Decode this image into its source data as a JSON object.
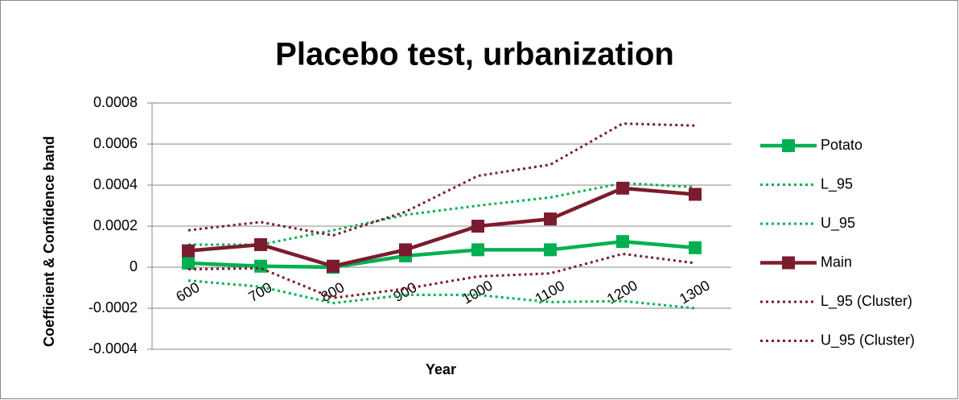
{
  "chart_data": {
    "type": "line",
    "title": "Placebo test, urbanization",
    "x_label": "Year",
    "y_label": "Coefficient & Confidence band",
    "categories": [
      "600",
      "700",
      "800",
      "900",
      "1000",
      "1100",
      "1200",
      "1300"
    ],
    "ylim": [
      -0.0004,
      0.0008
    ],
    "yticks": [
      -0.0004,
      -0.0002,
      0,
      0.0002,
      0.0004,
      0.0006,
      0.0008
    ],
    "grid": true,
    "legend": "right",
    "series": [
      {
        "name": "Potato",
        "color": "#00b050",
        "line_style": "solid",
        "marker": "square",
        "values": [
          2e-05,
          5e-06,
          0,
          5.5e-05,
          8.5e-05,
          8.5e-05,
          0.000125,
          9.5e-05
        ]
      },
      {
        "name": "L_95",
        "color": "#00b050",
        "line_style": "dotted",
        "marker": "none",
        "values": [
          -6.5e-05,
          -9.5e-05,
          -0.000175,
          -0.000135,
          -0.000135,
          -0.00017,
          -0.000165,
          -0.0002
        ]
      },
      {
        "name": "U_95",
        "color": "#00b050",
        "line_style": "dotted",
        "marker": "none",
        "values": [
          0.00011,
          0.00011,
          0.00018,
          0.000255,
          0.0003,
          0.00034,
          0.00041,
          0.00039
        ]
      },
      {
        "name": "Main",
        "color": "#7b1c2e",
        "line_style": "solid",
        "marker": "square",
        "values": [
          8e-05,
          0.00011,
          5e-06,
          8.5e-05,
          0.0002,
          0.000235,
          0.000385,
          0.000355
        ]
      },
      {
        "name": "L_95 (Cluster)",
        "color": "#7b1c2e",
        "line_style": "dotted",
        "marker": "none",
        "values": [
          -1e-05,
          -5e-06,
          -0.00015,
          -0.000105,
          -4.5e-05,
          -3e-05,
          6.5e-05,
          2e-05
        ]
      },
      {
        "name": "U_95 (Cluster)",
        "color": "#7b1c2e",
        "line_style": "dotted",
        "marker": "none",
        "values": [
          0.00018,
          0.00022,
          0.000155,
          0.00027,
          0.000445,
          0.0005,
          0.0007,
          0.00069
        ]
      }
    ]
  }
}
